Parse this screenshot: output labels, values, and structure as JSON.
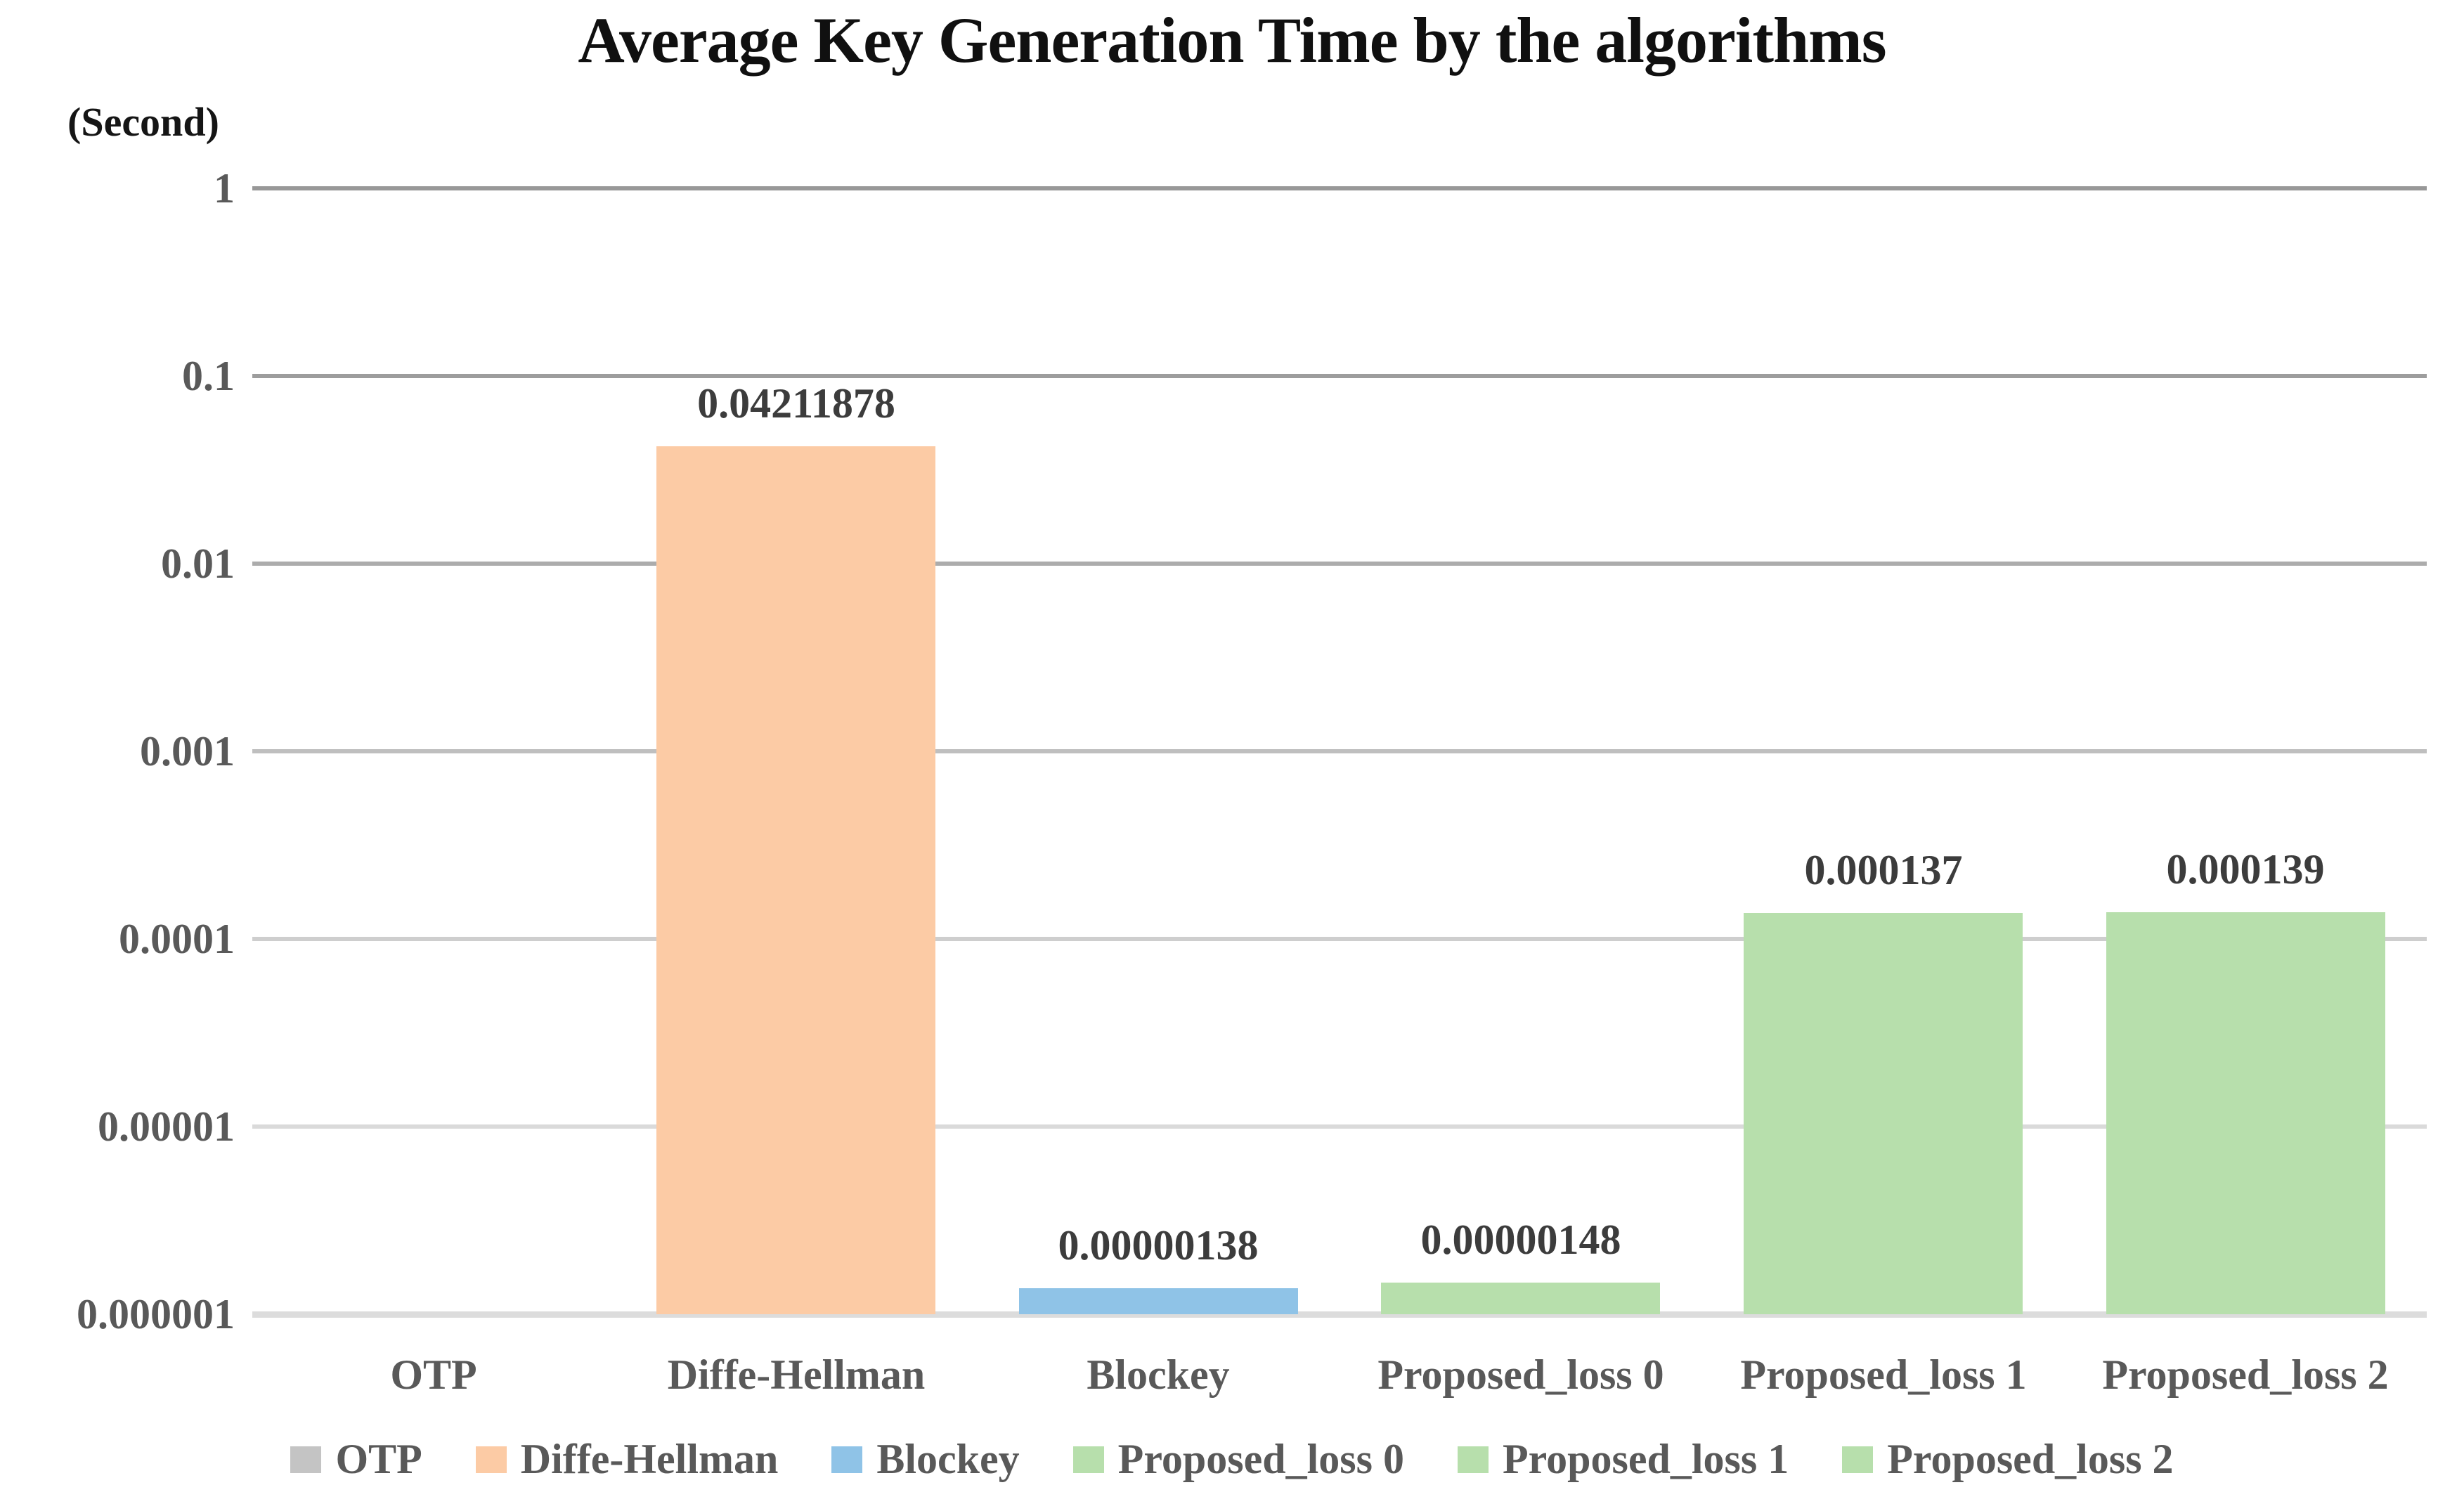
{
  "header": {
    "title": "Average Key Generation Time by the algorithms",
    "y_axis_unit": "(Second)"
  },
  "colors": {
    "background": "#ffffff",
    "title_text": "#101010",
    "tick_text": "#595959",
    "value_label_text": "#3C3C3C",
    "otp": "#C4C4C4",
    "diffe_hellman": "#FCCBA5",
    "blockey": "#8FC3E7",
    "proposed_green": "#B7DFAC",
    "axis_line": "#DCDCDC"
  },
  "chart_data": {
    "type": "bar",
    "title": "Average Key Generation Time by the algorithms",
    "xlabel": "",
    "ylabel": "(Second)",
    "log_scale": true,
    "ylim": [
      1e-06,
      1
    ],
    "grid": true,
    "legend_position": "bottom",
    "y_ticks": [
      {
        "label": "1",
        "grid_color": "#989898"
      },
      {
        "label": "0.1",
        "grid_color": "#9D9D9D"
      },
      {
        "label": "0.01",
        "grid_color": "#ACACAC"
      },
      {
        "label": "0.001",
        "grid_color": "#BFBFBF"
      },
      {
        "label": "0.0001",
        "grid_color": "#CECECE"
      },
      {
        "label": "0.00001",
        "grid_color": "#DADADA"
      },
      {
        "label": "0.000001",
        "grid_color": "#DCDCDC"
      }
    ],
    "categories": [
      "OTP",
      "Diffe-Hellman",
      "Blockey",
      "Proposed_loss 0",
      "Proposed_loss 1",
      "Proposed_loss 2"
    ],
    "bars": [
      {
        "category": "OTP",
        "value": 0,
        "data_label": "",
        "color": "#C4C4C4"
      },
      {
        "category": "Diffe-Hellman",
        "value": 0.04211878,
        "data_label": "0.04211878",
        "color": "#FCCBA5"
      },
      {
        "category": "Blockey",
        "value": 1.38e-06,
        "data_label": "0.00000138",
        "color": "#8FC3E7"
      },
      {
        "category": "Proposed_loss 0",
        "value": 1.48e-06,
        "data_label": "0.00000148",
        "color": "#B7DFAC"
      },
      {
        "category": "Proposed_loss 1",
        "value": 0.000137,
        "data_label": "0.000137",
        "color": "#B7DFAC"
      },
      {
        "category": "Proposed_loss 2",
        "value": 0.000139,
        "data_label": "0.000139",
        "color": "#B7DFAC"
      }
    ],
    "legend": [
      {
        "label": "OTP",
        "color": "#C4C4C4"
      },
      {
        "label": "Diffe-Hellman",
        "color": "#FCCBA5"
      },
      {
        "label": "Blockey",
        "color": "#8FC3E7"
      },
      {
        "label": "Proposed_loss 0",
        "color": "#B7DFAC"
      },
      {
        "label": "Proposed_loss 1",
        "color": "#B7DFAC"
      },
      {
        "label": "Proposed_loss 2",
        "color": "#B7DFAC"
      }
    ]
  }
}
